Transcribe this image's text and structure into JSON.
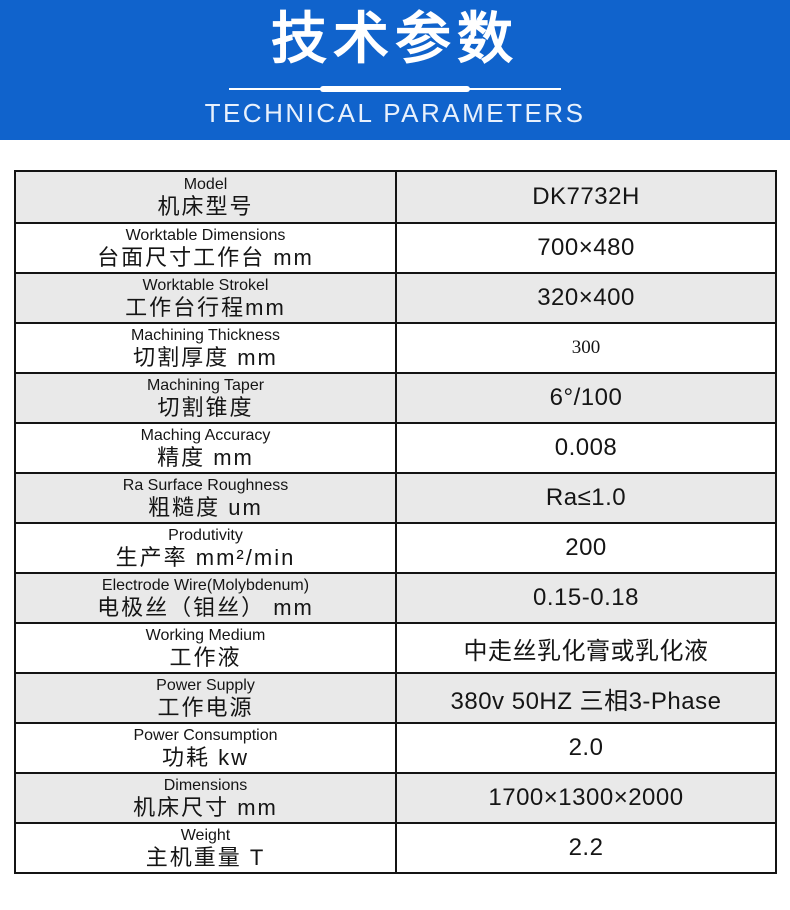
{
  "header": {
    "title": "技术参数",
    "subtitle": "TECHNICAL PARAMETERS"
  },
  "colors": {
    "header_bg": "#1063cc",
    "row_alt_bg": "#e9e9e9",
    "border": "#141414"
  },
  "table": {
    "rows": [
      {
        "label_en": "Model",
        "label_cn": "机床型号",
        "value": "DK7732H"
      },
      {
        "label_en": "Worktable Dimensions",
        "label_cn": "台面尺寸工作台 mm",
        "value": "700×480"
      },
      {
        "label_en": "Worktable Strokel",
        "label_cn": "工作台行程mm",
        "value": "320×400"
      },
      {
        "label_en": "Machining Thickness",
        "label_cn": "切割厚度 mm",
        "value": "300",
        "value_small_serif": true
      },
      {
        "label_en": "Machining Taper",
        "label_cn": "切割锥度",
        "value": "6°/100"
      },
      {
        "label_en": "Maching Accuracy",
        "label_cn": "精度 mm",
        "value": "0.008"
      },
      {
        "label_en": "Ra Surface Roughness",
        "label_cn": "粗糙度 um",
        "value": "Ra≤1.0"
      },
      {
        "label_en": "Produtivity",
        "label_cn": "生产率 mm²/min",
        "value": "200"
      },
      {
        "label_en": "Electrode Wire(Molybdenum)",
        "label_cn": "电极丝（钼丝） mm",
        "value": "0.15-0.18"
      },
      {
        "label_en": "Working Medium",
        "label_cn": "工作液",
        "value": "中走丝乳化膏或乳化液"
      },
      {
        "label_en": "Power Supply",
        "label_cn": "工作电源",
        "value": "380v 50HZ 三相3-Phase"
      },
      {
        "label_en": "Power Consumption",
        "label_cn": "功耗 kw",
        "value": "2.0"
      },
      {
        "label_en": "Dimensions",
        "label_cn": "机床尺寸 mm",
        "value": "1700×1300×2000"
      },
      {
        "label_en": "Weight",
        "label_cn": "主机重量 T",
        "value": "2.2"
      }
    ]
  }
}
